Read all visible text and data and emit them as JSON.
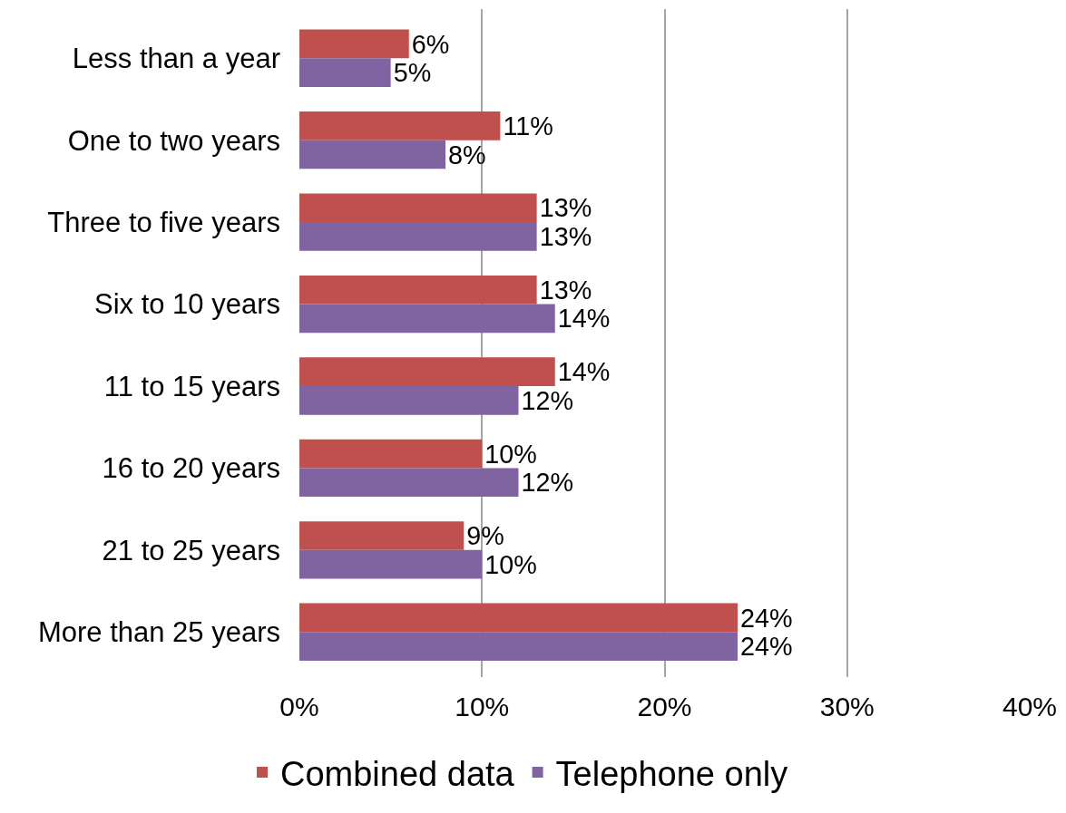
{
  "chart_data": {
    "type": "bar",
    "orientation": "horizontal",
    "categories": [
      "Less than a year",
      "One to two years",
      "Three to five years",
      "Six to 10 years",
      "11 to 15 years",
      "16 to 20 years",
      "21 to 25 years",
      "More than 25 years"
    ],
    "series": [
      {
        "name": "Combined data",
        "color": "#c0504d",
        "values": [
          6,
          11,
          13,
          13,
          14,
          10,
          9,
          24
        ],
        "value_labels": [
          "6%",
          "11%",
          "13%",
          "13%",
          "14%",
          "10%",
          "9%",
          "24%"
        ]
      },
      {
        "name": "Telephone only",
        "color": "#8064a2",
        "values": [
          5,
          8,
          13,
          14,
          12,
          12,
          10,
          24
        ],
        "value_labels": [
          "5%",
          "8%",
          "13%",
          "14%",
          "12%",
          "12%",
          "10%",
          "24%"
        ]
      }
    ],
    "xlim": [
      0,
      40
    ],
    "xticks": [
      {
        "value": 0,
        "label": "0%"
      },
      {
        "value": 10,
        "label": "10%"
      },
      {
        "value": 20,
        "label": "20%"
      },
      {
        "value": 30,
        "label": "30%"
      },
      {
        "value": 40,
        "label": "40%"
      }
    ],
    "grid": "x",
    "legend": "bottom"
  }
}
